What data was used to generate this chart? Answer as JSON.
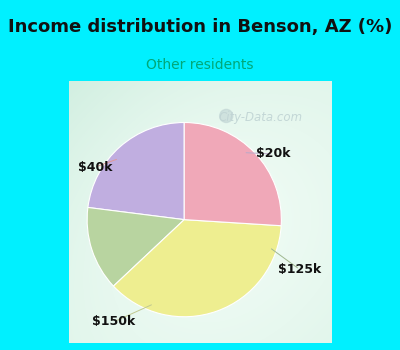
{
  "title": "Income distribution in Benson, AZ (%)",
  "subtitle": "Other residents",
  "title_color": "#111111",
  "subtitle_color": "#00a878",
  "top_bg_color": "#00f0ff",
  "chart_bg_top_right": "#e8f8f8",
  "chart_bg_bottom_left": "#c8e8d8",
  "slices": [
    {
      "label": "$20k",
      "value": 23,
      "color": "#c0aee0"
    },
    {
      "label": "$125k",
      "value": 14,
      "color": "#b8d4a0"
    },
    {
      "label": "$150k",
      "value": 37,
      "color": "#eeee90"
    },
    {
      "label": "$40k",
      "value": 26,
      "color": "#f0a8b8"
    }
  ],
  "start_angle": 90,
  "watermark": "City-Data.com",
  "watermark_color": "#c0d4d4",
  "label_color": "#111111",
  "label_fontsize": 9,
  "line_color": "#c0a0b0",
  "line_color_125": "#a0b8a0",
  "line_color_150": "#c0c8a0",
  "title_fontsize": 13,
  "subtitle_fontsize": 10
}
